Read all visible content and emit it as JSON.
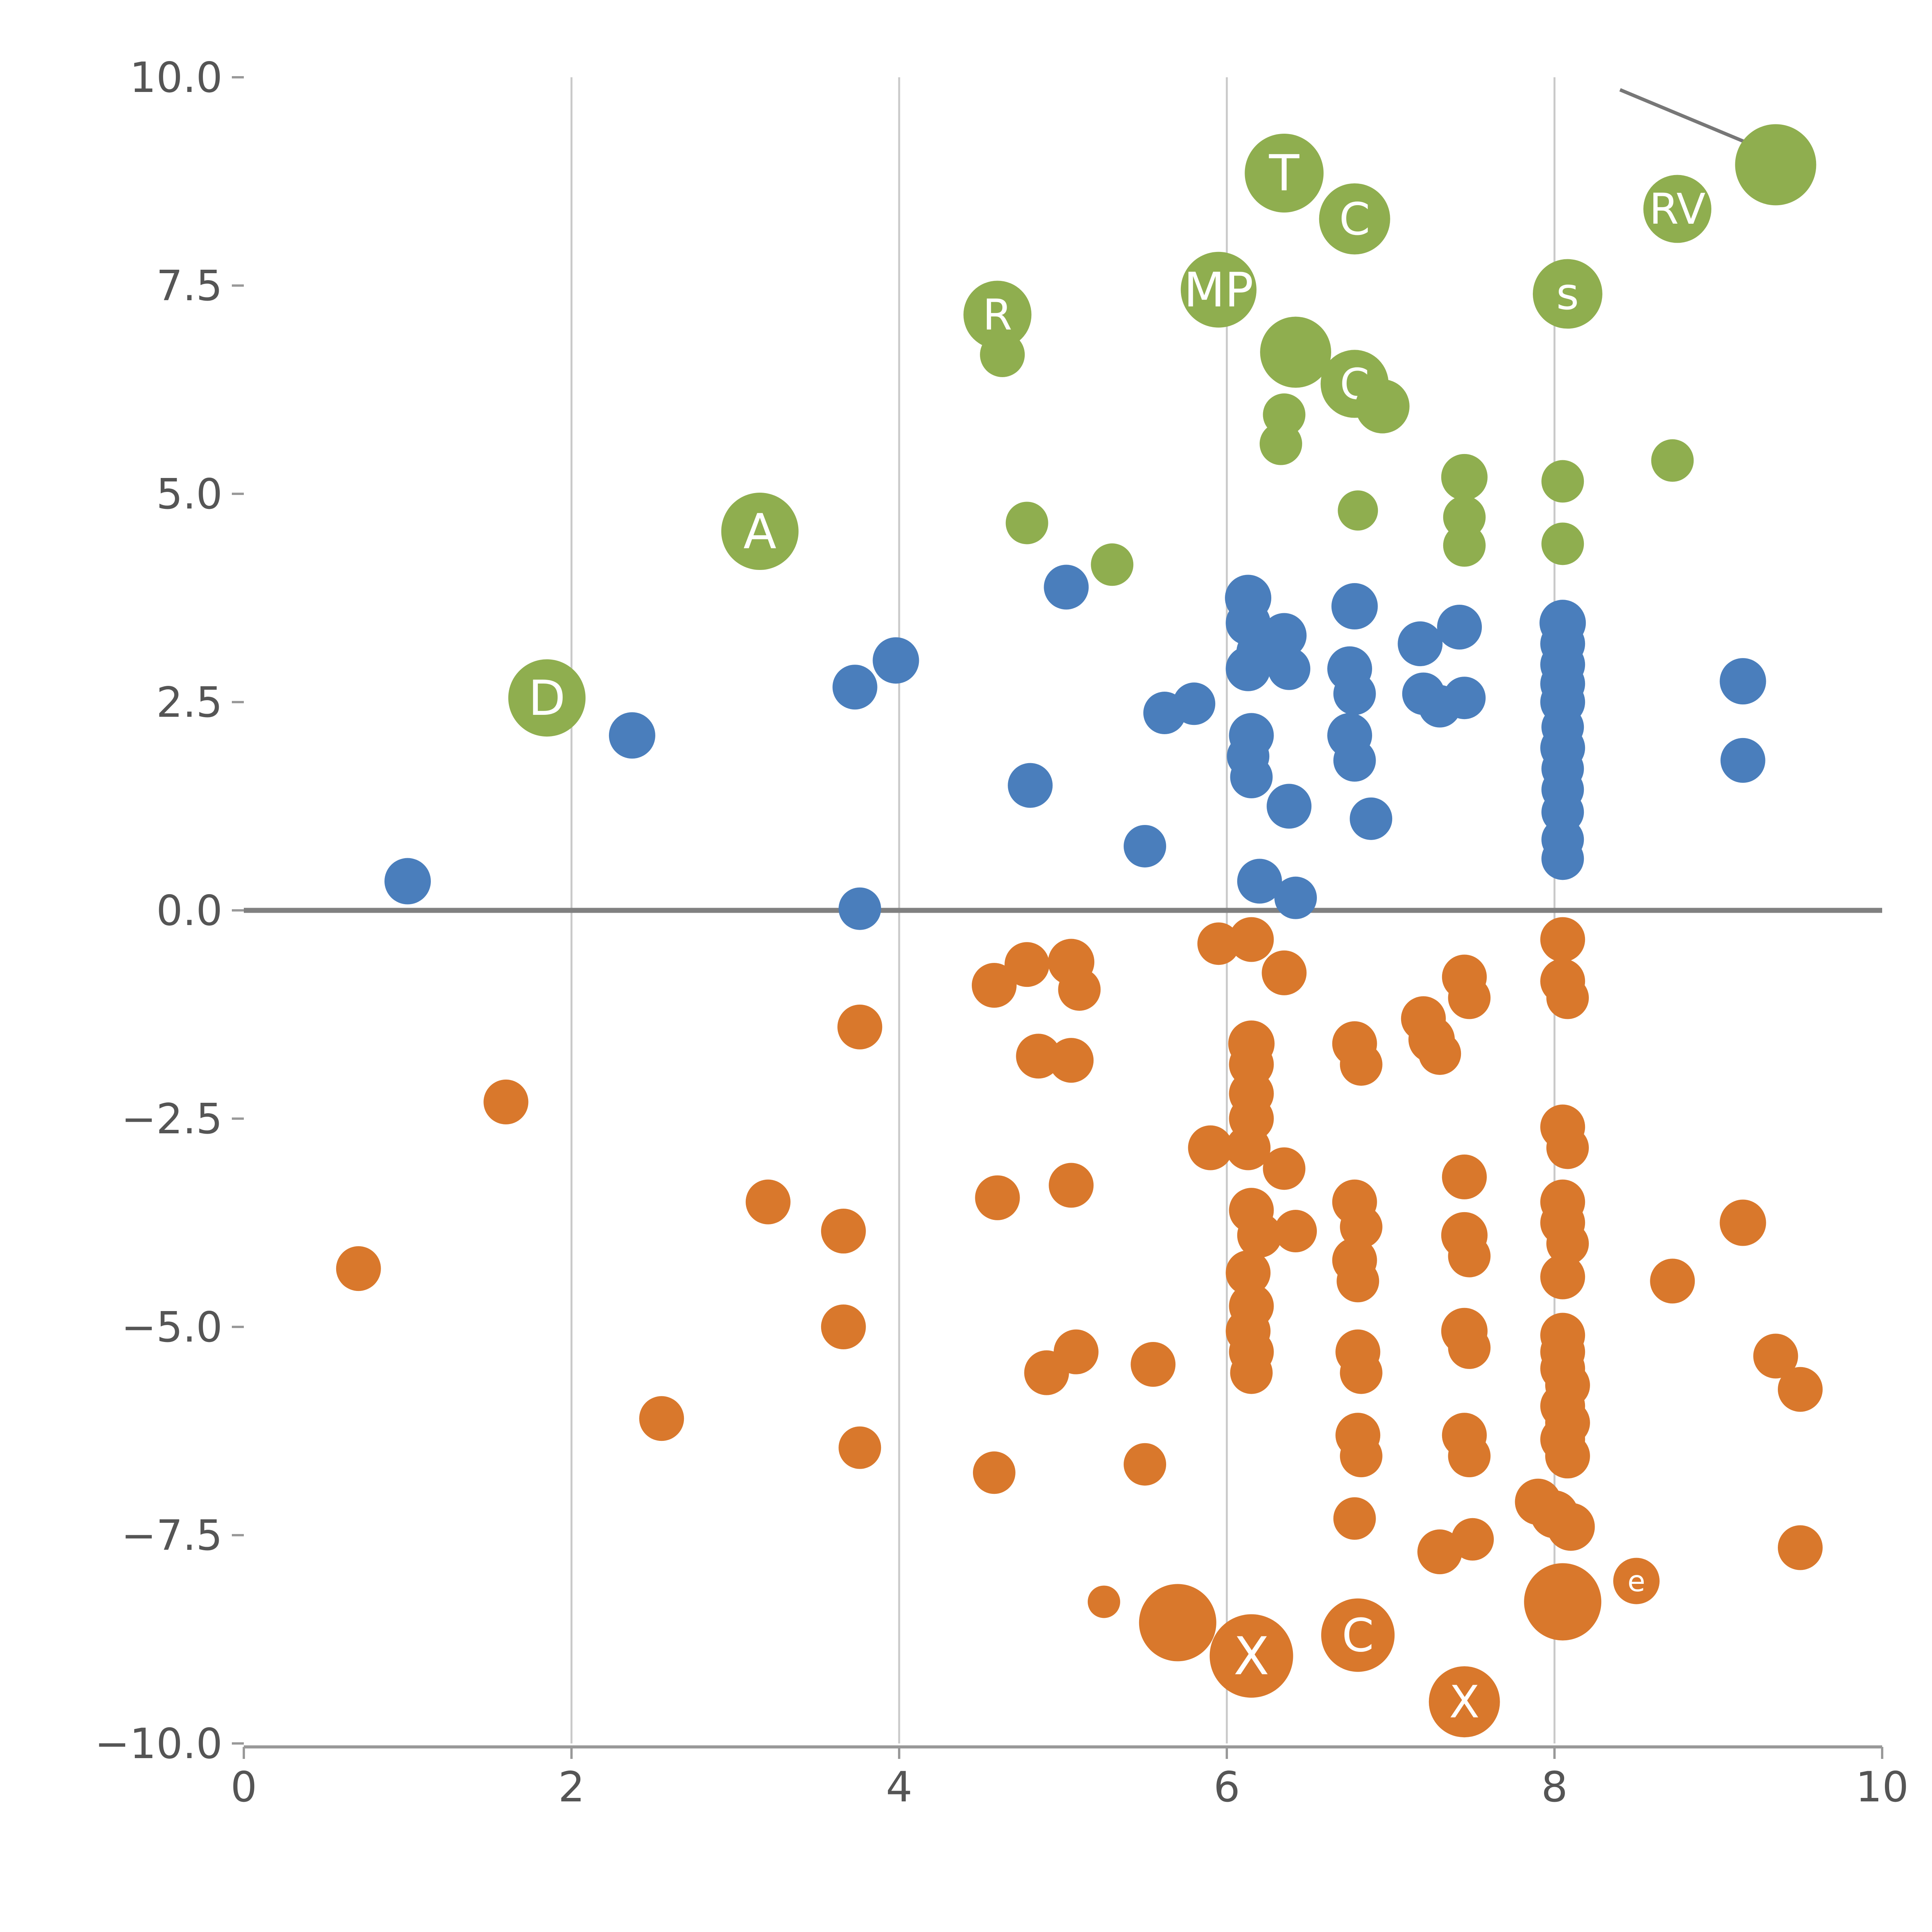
{
  "chart_data": {
    "type": "scatter",
    "title": "",
    "xlabel": "",
    "ylabel": "",
    "xlim": [
      0,
      10
    ],
    "ylim": [
      -10,
      10
    ],
    "grid": {
      "vertical_x": [
        2,
        4,
        6,
        8
      ],
      "zero_line_y": 0
    },
    "axis": {
      "x_ticks": [
        0,
        2,
        4,
        6,
        8,
        10
      ],
      "x_tick_labels": [
        "0",
        "2",
        "4",
        "6",
        "8",
        "10"
      ],
      "y_ticks": [
        10,
        7.5,
        5,
        2.5,
        0,
        -2.5,
        -5,
        -7.5,
        -10
      ],
      "y_tick_labels": [
        "10.0",
        "7.5",
        "5.0",
        "2.5",
        "0.0",
        "−2.5",
        "−5.0",
        "−7.5",
        "−10.0"
      ]
    },
    "annotation_line": {
      "from": [
        8.4,
        9.85
      ],
      "to": [
        9.29,
        9.12
      ]
    },
    "series": [
      {
        "name": "green",
        "color": "#8fae4f",
        "points": [
          [
            6.35,
            8.85,
            102,
            "T"
          ],
          [
            6.78,
            8.3,
            92,
            "C"
          ],
          [
            9.35,
            8.95,
            105,
            ""
          ],
          [
            8.75,
            8.42,
            88,
            "RV"
          ],
          [
            5.95,
            7.45,
            98,
            "MP"
          ],
          [
            4.6,
            7.15,
            88,
            "R"
          ],
          [
            4.63,
            6.67,
            58,
            ""
          ],
          [
            8.08,
            7.4,
            90,
            "s"
          ],
          [
            6.42,
            6.7,
            92,
            ""
          ],
          [
            6.78,
            6.32,
            88,
            "C"
          ],
          [
            6.95,
            6.05,
            70,
            ""
          ],
          [
            6.35,
            5.95,
            55,
            ""
          ],
          [
            6.33,
            5.6,
            55,
            ""
          ],
          [
            7.45,
            5.2,
            60,
            ""
          ],
          [
            7.45,
            4.72,
            55,
            ""
          ],
          [
            7.45,
            4.38,
            55,
            ""
          ],
          [
            6.8,
            4.8,
            52,
            ""
          ],
          [
            4.78,
            4.65,
            55,
            ""
          ],
          [
            5.3,
            4.15,
            55,
            ""
          ],
          [
            3.15,
            4.55,
            100,
            "A"
          ],
          [
            1.85,
            2.55,
            100,
            "D"
          ],
          [
            8.72,
            5.4,
            55,
            ""
          ],
          [
            8.05,
            5.15,
            55,
            ""
          ],
          [
            8.05,
            4.4,
            55,
            ""
          ]
        ]
      },
      {
        "name": "blue",
        "color": "#4a7ebc",
        "points": [
          [
            1.0,
            0.35,
            60
          ],
          [
            2.37,
            2.1,
            60
          ],
          [
            3.73,
            2.68,
            58
          ],
          [
            3.98,
            3.0,
            60
          ],
          [
            3.76,
            0.02,
            55
          ],
          [
            5.02,
            3.88,
            58
          ],
          [
            4.8,
            1.5,
            58
          ],
          [
            5.5,
            0.77,
            55
          ],
          [
            5.62,
            2.37,
            55
          ],
          [
            5.8,
            2.48,
            55
          ],
          [
            6.13,
            3.75,
            60
          ],
          [
            6.13,
            3.45,
            58
          ],
          [
            6.2,
            3.1,
            60
          ],
          [
            6.35,
            3.3,
            58
          ],
          [
            6.13,
            2.9,
            58
          ],
          [
            6.38,
            2.9,
            55
          ],
          [
            6.15,
            2.1,
            58
          ],
          [
            6.13,
            1.85,
            55
          ],
          [
            6.15,
            1.6,
            55
          ],
          [
            6.38,
            1.25,
            58
          ],
          [
            6.2,
            0.35,
            58
          ],
          [
            6.42,
            0.15,
            55
          ],
          [
            6.78,
            3.65,
            60
          ],
          [
            6.75,
            2.9,
            58
          ],
          [
            6.78,
            2.6,
            55
          ],
          [
            6.75,
            2.1,
            58
          ],
          [
            6.78,
            1.8,
            55
          ],
          [
            6.88,
            1.1,
            55
          ],
          [
            7.18,
            3.2,
            58
          ],
          [
            7.2,
            2.6,
            55
          ],
          [
            7.3,
            2.45,
            55
          ],
          [
            7.42,
            3.4,
            58
          ],
          [
            7.45,
            2.55,
            55
          ],
          [
            8.05,
            3.45,
            60
          ],
          [
            8.05,
            3.2,
            58
          ],
          [
            8.05,
            2.95,
            58
          ],
          [
            8.05,
            2.72,
            58
          ],
          [
            8.05,
            2.5,
            58
          ],
          [
            8.05,
            2.2,
            55
          ],
          [
            8.05,
            1.95,
            58
          ],
          [
            8.05,
            1.7,
            55
          ],
          [
            8.05,
            1.45,
            55
          ],
          [
            8.05,
            1.18,
            55
          ],
          [
            8.05,
            0.85,
            55
          ],
          [
            8.05,
            0.62,
            55
          ],
          [
            9.15,
            2.75,
            60
          ],
          [
            9.15,
            1.8,
            58
          ]
        ]
      },
      {
        "name": "orange",
        "color": "#d9782c",
        "points": [
          [
            0.7,
            -4.3,
            58
          ],
          [
            1.6,
            -2.3,
            58
          ],
          [
            2.55,
            -6.1,
            58
          ],
          [
            3.2,
            -3.5,
            58
          ],
          [
            3.76,
            -1.4,
            58
          ],
          [
            3.66,
            -3.85,
            58
          ],
          [
            3.66,
            -5.0,
            58
          ],
          [
            3.76,
            -6.45,
            55
          ],
          [
            4.58,
            -0.9,
            58
          ],
          [
            4.78,
            -0.65,
            58
          ],
          [
            5.05,
            -0.62,
            60
          ],
          [
            5.1,
            -0.95,
            55
          ],
          [
            4.85,
            -1.75,
            58
          ],
          [
            5.05,
            -1.8,
            58
          ],
          [
            4.6,
            -3.45,
            58
          ],
          [
            5.05,
            -3.3,
            58
          ],
          [
            4.58,
            -6.75,
            55
          ],
          [
            4.9,
            -5.55,
            58
          ],
          [
            5.08,
            -5.3,
            58
          ],
          [
            5.25,
            -8.3,
            42
          ],
          [
            5.55,
            -5.45,
            58
          ],
          [
            5.5,
            -6.65,
            55
          ],
          [
            5.7,
            -8.55,
            100,
            ""
          ],
          [
            6.15,
            -8.95,
            108,
            "X"
          ],
          [
            6.8,
            -8.7,
            95,
            "C"
          ],
          [
            7.45,
            -9.5,
            92,
            "X"
          ],
          [
            5.95,
            -0.4,
            55
          ],
          [
            6.15,
            -0.35,
            58
          ],
          [
            6.35,
            -0.75,
            58
          ],
          [
            5.9,
            -2.85,
            58
          ],
          [
            6.15,
            -1.6,
            60
          ],
          [
            6.15,
            -1.85,
            58
          ],
          [
            6.15,
            -2.2,
            58
          ],
          [
            6.15,
            -2.5,
            58
          ],
          [
            6.13,
            -2.85,
            58
          ],
          [
            6.35,
            -3.1,
            55
          ],
          [
            6.15,
            -3.6,
            58
          ],
          [
            6.2,
            -3.9,
            58
          ],
          [
            6.42,
            -3.85,
            55
          ],
          [
            6.13,
            -4.35,
            58
          ],
          [
            6.15,
            -4.75,
            58
          ],
          [
            6.13,
            -5.05,
            58
          ],
          [
            6.15,
            -5.3,
            58
          ],
          [
            6.15,
            -5.55,
            55
          ],
          [
            6.78,
            -1.6,
            58
          ],
          [
            6.82,
            -1.85,
            55
          ],
          [
            6.78,
            -3.5,
            58
          ],
          [
            6.82,
            -3.8,
            55
          ],
          [
            6.78,
            -4.2,
            58
          ],
          [
            6.8,
            -4.45,
            55
          ],
          [
            6.8,
            -5.3,
            58
          ],
          [
            6.82,
            -5.55,
            55
          ],
          [
            6.8,
            -6.3,
            58
          ],
          [
            6.82,
            -6.55,
            55
          ],
          [
            6.78,
            -7.3,
            55
          ],
          [
            7.2,
            -1.3,
            58
          ],
          [
            7.25,
            -1.55,
            60
          ],
          [
            7.3,
            -1.72,
            55
          ],
          [
            7.45,
            -0.8,
            58
          ],
          [
            7.48,
            -1.05,
            55
          ],
          [
            7.45,
            -3.2,
            58
          ],
          [
            7.45,
            -3.9,
            60
          ],
          [
            7.48,
            -4.15,
            55
          ],
          [
            7.45,
            -5.05,
            60
          ],
          [
            7.48,
            -5.25,
            55
          ],
          [
            7.3,
            -7.7,
            58
          ],
          [
            7.5,
            -7.55,
            55
          ],
          [
            7.45,
            -6.3,
            58
          ],
          [
            7.48,
            -6.55,
            55
          ],
          [
            8.05,
            -0.35,
            58
          ],
          [
            8.05,
            -0.85,
            58
          ],
          [
            8.08,
            -1.05,
            55
          ],
          [
            8.05,
            -2.6,
            58
          ],
          [
            8.08,
            -2.85,
            55
          ],
          [
            8.05,
            -3.5,
            58
          ],
          [
            8.05,
            -3.75,
            58
          ],
          [
            8.08,
            -4.0,
            55
          ],
          [
            8.05,
            -4.4,
            58
          ],
          [
            8.05,
            -5.1,
            58
          ],
          [
            8.05,
            -5.3,
            58
          ],
          [
            8.05,
            -5.5,
            58
          ],
          [
            8.08,
            -5.7,
            58
          ],
          [
            8.05,
            -5.95,
            58
          ],
          [
            8.08,
            -6.15,
            58
          ],
          [
            8.05,
            -6.35,
            58
          ],
          [
            8.08,
            -6.55,
            58
          ],
          [
            7.9,
            -7.1,
            60
          ],
          [
            8.0,
            -7.25,
            62
          ],
          [
            8.1,
            -7.4,
            62
          ],
          [
            8.05,
            -8.3,
            100,
            ""
          ],
          [
            8.5,
            -8.05,
            60,
            "e"
          ],
          [
            8.72,
            -4.45,
            58
          ],
          [
            9.15,
            -3.75,
            60
          ],
          [
            9.35,
            -5.35,
            58
          ],
          [
            9.5,
            -5.75,
            58
          ],
          [
            9.5,
            -7.65,
            58
          ]
        ]
      }
    ]
  },
  "style": {
    "background": "#ffffff",
    "gridline_color": "#c9c9c9",
    "zero_line_color": "#808080",
    "spine_color": "#999999",
    "tick_label_color": "#555555",
    "annotation_color": "#777777",
    "bubble_label_color": "#ffffff"
  }
}
